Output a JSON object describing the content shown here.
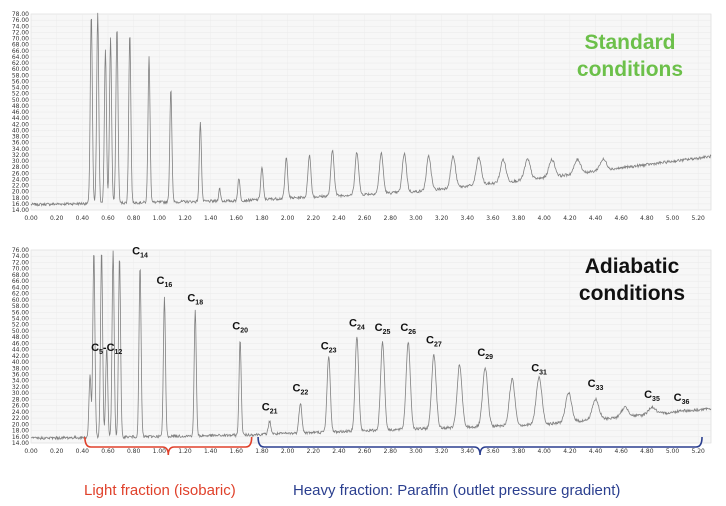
{
  "colors": {
    "trace": "#808080",
    "green_text": "#6cc04a",
    "dark_text": "#111111",
    "light_fraction": "#e0412b",
    "heavy_fraction": "#2b3f8f"
  },
  "chart_data": [
    {
      "type": "line",
      "title": "Standard conditions",
      "title_lines": [
        "Standard",
        "conditions"
      ],
      "xlim": [
        0.0,
        5.3
      ],
      "ylim": [
        14.0,
        78.0
      ],
      "x_ticks": [
        "0.00",
        "0.20",
        "0.40",
        "0.60",
        "0.80",
        "1.00",
        "1.20",
        "1.40",
        "1.60",
        "1.80",
        "2.00",
        "2.20",
        "2.40",
        "2.60",
        "2.80",
        "3.00",
        "3.20",
        "3.40",
        "3.60",
        "3.80",
        "4.00",
        "4.20",
        "4.40",
        "4.60",
        "4.80",
        "5.00",
        "5.20"
      ],
      "y_ticks": [
        "78.00",
        "76.00",
        "74.00",
        "72.00",
        "70.00",
        "68.00",
        "66.00",
        "64.00",
        "62.00",
        "60.00",
        "58.00",
        "56.00",
        "54.00",
        "52.00",
        "50.00",
        "48.00",
        "46.00",
        "44.00",
        "42.00",
        "40.00",
        "38.00",
        "36.00",
        "34.00",
        "32.00",
        "30.00",
        "28.00",
        "26.00",
        "24.00",
        "22.00",
        "20.00",
        "18.00",
        "16.00",
        "14.00"
      ],
      "grid": true,
      "baseline": [
        [
          0.0,
          15.8
        ],
        [
          1.6,
          17.0
        ],
        [
          3.0,
          20.0
        ],
        [
          4.0,
          24.5
        ],
        [
          5.3,
          31.5
        ]
      ],
      "peaks": [
        {
          "x": 0.47,
          "y": 78.0
        },
        {
          "x": 0.52,
          "y": 78.0
        },
        {
          "x": 0.58,
          "y": 66.0
        },
        {
          "x": 0.62,
          "y": 70.0
        },
        {
          "x": 0.67,
          "y": 74.0
        },
        {
          "x": 0.77,
          "y": 72.0
        },
        {
          "x": 0.92,
          "y": 64.0
        },
        {
          "x": 1.09,
          "y": 54.0
        },
        {
          "x": 1.32,
          "y": 43.0
        },
        {
          "x": 1.47,
          "y": 21.0
        },
        {
          "x": 1.62,
          "y": 24.5
        },
        {
          "x": 1.8,
          "y": 28.0
        },
        {
          "x": 1.99,
          "y": 31.0
        },
        {
          "x": 2.17,
          "y": 32.0
        },
        {
          "x": 2.35,
          "y": 33.5
        },
        {
          "x": 2.54,
          "y": 33.0
        },
        {
          "x": 2.73,
          "y": 32.5
        },
        {
          "x": 2.91,
          "y": 32.5
        },
        {
          "x": 3.1,
          "y": 31.5
        },
        {
          "x": 3.29,
          "y": 31.5
        },
        {
          "x": 3.49,
          "y": 31.0
        },
        {
          "x": 3.68,
          "y": 30.5
        },
        {
          "x": 3.87,
          "y": 30.5
        },
        {
          "x": 4.06,
          "y": 30.5
        },
        {
          "x": 4.26,
          "y": 30.5
        },
        {
          "x": 4.46,
          "y": 30.5
        }
      ]
    },
    {
      "type": "line",
      "title": "Adiabatic conditions",
      "title_lines": [
        "Adiabatic",
        "conditions"
      ],
      "xlim": [
        0.0,
        5.3
      ],
      "ylim": [
        14.0,
        76.0
      ],
      "x_ticks": [
        "0.00",
        "0.20",
        "0.40",
        "0.60",
        "0.80",
        "1.00",
        "1.20",
        "1.40",
        "1.60",
        "1.80",
        "2.00",
        "2.20",
        "2.40",
        "2.60",
        "2.80",
        "3.00",
        "3.20",
        "3.40",
        "3.60",
        "3.80",
        "4.00",
        "4.20",
        "4.40",
        "4.60",
        "4.80",
        "5.00",
        "5.20"
      ],
      "y_ticks": [
        "76.00",
        "74.00",
        "72.00",
        "70.00",
        "68.00",
        "66.00",
        "64.00",
        "62.00",
        "60.00",
        "58.00",
        "56.00",
        "54.00",
        "52.00",
        "50.00",
        "48.00",
        "46.00",
        "44.00",
        "42.00",
        "40.00",
        "38.00",
        "36.00",
        "34.00",
        "32.00",
        "30.00",
        "28.00",
        "26.00",
        "24.00",
        "22.00",
        "20.00",
        "18.00",
        "16.00",
        "14.00"
      ],
      "grid": true,
      "baseline": [
        [
          0.0,
          15.5
        ],
        [
          1.6,
          16.5
        ],
        [
          3.0,
          18.5
        ],
        [
          4.0,
          20.0
        ],
        [
          5.3,
          25.0
        ]
      ],
      "peaks": [
        {
          "x": 0.46,
          "y": 36.0
        },
        {
          "x": 0.49,
          "y": 76.0
        },
        {
          "x": 0.55,
          "y": 76.0
        },
        {
          "x": 0.59,
          "y": 45.0
        },
        {
          "x": 0.64,
          "y": 76.0
        },
        {
          "x": 0.69,
          "y": 74.0
        },
        {
          "x": 0.85,
          "y": 71.0
        },
        {
          "x": 1.04,
          "y": 61.0
        },
        {
          "x": 1.28,
          "y": 57.0
        },
        {
          "x": 1.63,
          "y": 47.0
        },
        {
          "x": 1.86,
          "y": 21.0
        },
        {
          "x": 2.1,
          "y": 27.0
        },
        {
          "x": 2.32,
          "y": 42.0
        },
        {
          "x": 2.54,
          "y": 48.0
        },
        {
          "x": 2.74,
          "y": 46.5
        },
        {
          "x": 2.94,
          "y": 46.5
        },
        {
          "x": 3.14,
          "y": 42.5
        },
        {
          "x": 3.34,
          "y": 39.0
        },
        {
          "x": 3.54,
          "y": 38.0
        },
        {
          "x": 3.75,
          "y": 34.5
        },
        {
          "x": 3.96,
          "y": 35.0
        },
        {
          "x": 4.19,
          "y": 30.0
        },
        {
          "x": 4.4,
          "y": 28.0
        },
        {
          "x": 4.63,
          "y": 25.5
        },
        {
          "x": 4.84,
          "y": 25.5
        },
        {
          "x": 5.07,
          "y": 24.5
        }
      ],
      "annotations": [
        {
          "text": "C5-C12",
          "parts": [
            "C",
            "5",
            "-C",
            "12"
          ],
          "x": 0.59,
          "y": 43.5
        },
        {
          "text": "C14",
          "parts": [
            "C",
            "14"
          ],
          "x": 0.85,
          "y": 74.5
        },
        {
          "text": "C16",
          "parts": [
            "C",
            "16"
          ],
          "x": 1.04,
          "y": 65.0
        },
        {
          "text": "C18",
          "parts": [
            "C",
            "18"
          ],
          "x": 1.28,
          "y": 59.5
        },
        {
          "text": "C20",
          "parts": [
            "C",
            "20"
          ],
          "x": 1.63,
          "y": 50.5
        },
        {
          "text": "C21",
          "parts": [
            "C",
            "21"
          ],
          "x": 1.86,
          "y": 24.5
        },
        {
          "text": "C22",
          "parts": [
            "C",
            "22"
          ],
          "x": 2.1,
          "y": 30.5
        },
        {
          "text": "C23",
          "parts": [
            "C",
            "23"
          ],
          "x": 2.32,
          "y": 44.0
        },
        {
          "text": "C24",
          "parts": [
            "C",
            "24"
          ],
          "x": 2.54,
          "y": 51.5
        },
        {
          "text": "C25",
          "parts": [
            "C",
            "25"
          ],
          "x": 2.74,
          "y": 50.0
        },
        {
          "text": "C26",
          "parts": [
            "C",
            "26"
          ],
          "x": 2.94,
          "y": 50.0
        },
        {
          "text": "C27",
          "parts": [
            "C",
            "27"
          ],
          "x": 3.14,
          "y": 46.0
        },
        {
          "text": "C29",
          "parts": [
            "C",
            "29"
          ],
          "x": 3.54,
          "y": 42.0
        },
        {
          "text": "C31",
          "parts": [
            "C",
            "31"
          ],
          "x": 3.96,
          "y": 37.0
        },
        {
          "text": "C33",
          "parts": [
            "C",
            "33"
          ],
          "x": 4.4,
          "y": 32.0
        },
        {
          "text": "C35",
          "parts": [
            "C",
            "35"
          ],
          "x": 4.84,
          "y": 28.5
        },
        {
          "text": "C36",
          "parts": [
            "C",
            "36"
          ],
          "x": 5.07,
          "y": 27.5
        }
      ]
    }
  ],
  "fractions": {
    "light": {
      "label": "Light fraction (isobaric)",
      "x_range": [
        0.42,
        1.72
      ]
    },
    "heavy": {
      "label": "Heavy fraction: Paraffin (outlet pressure gradient)",
      "x_range": [
        1.77,
        5.23
      ]
    }
  }
}
